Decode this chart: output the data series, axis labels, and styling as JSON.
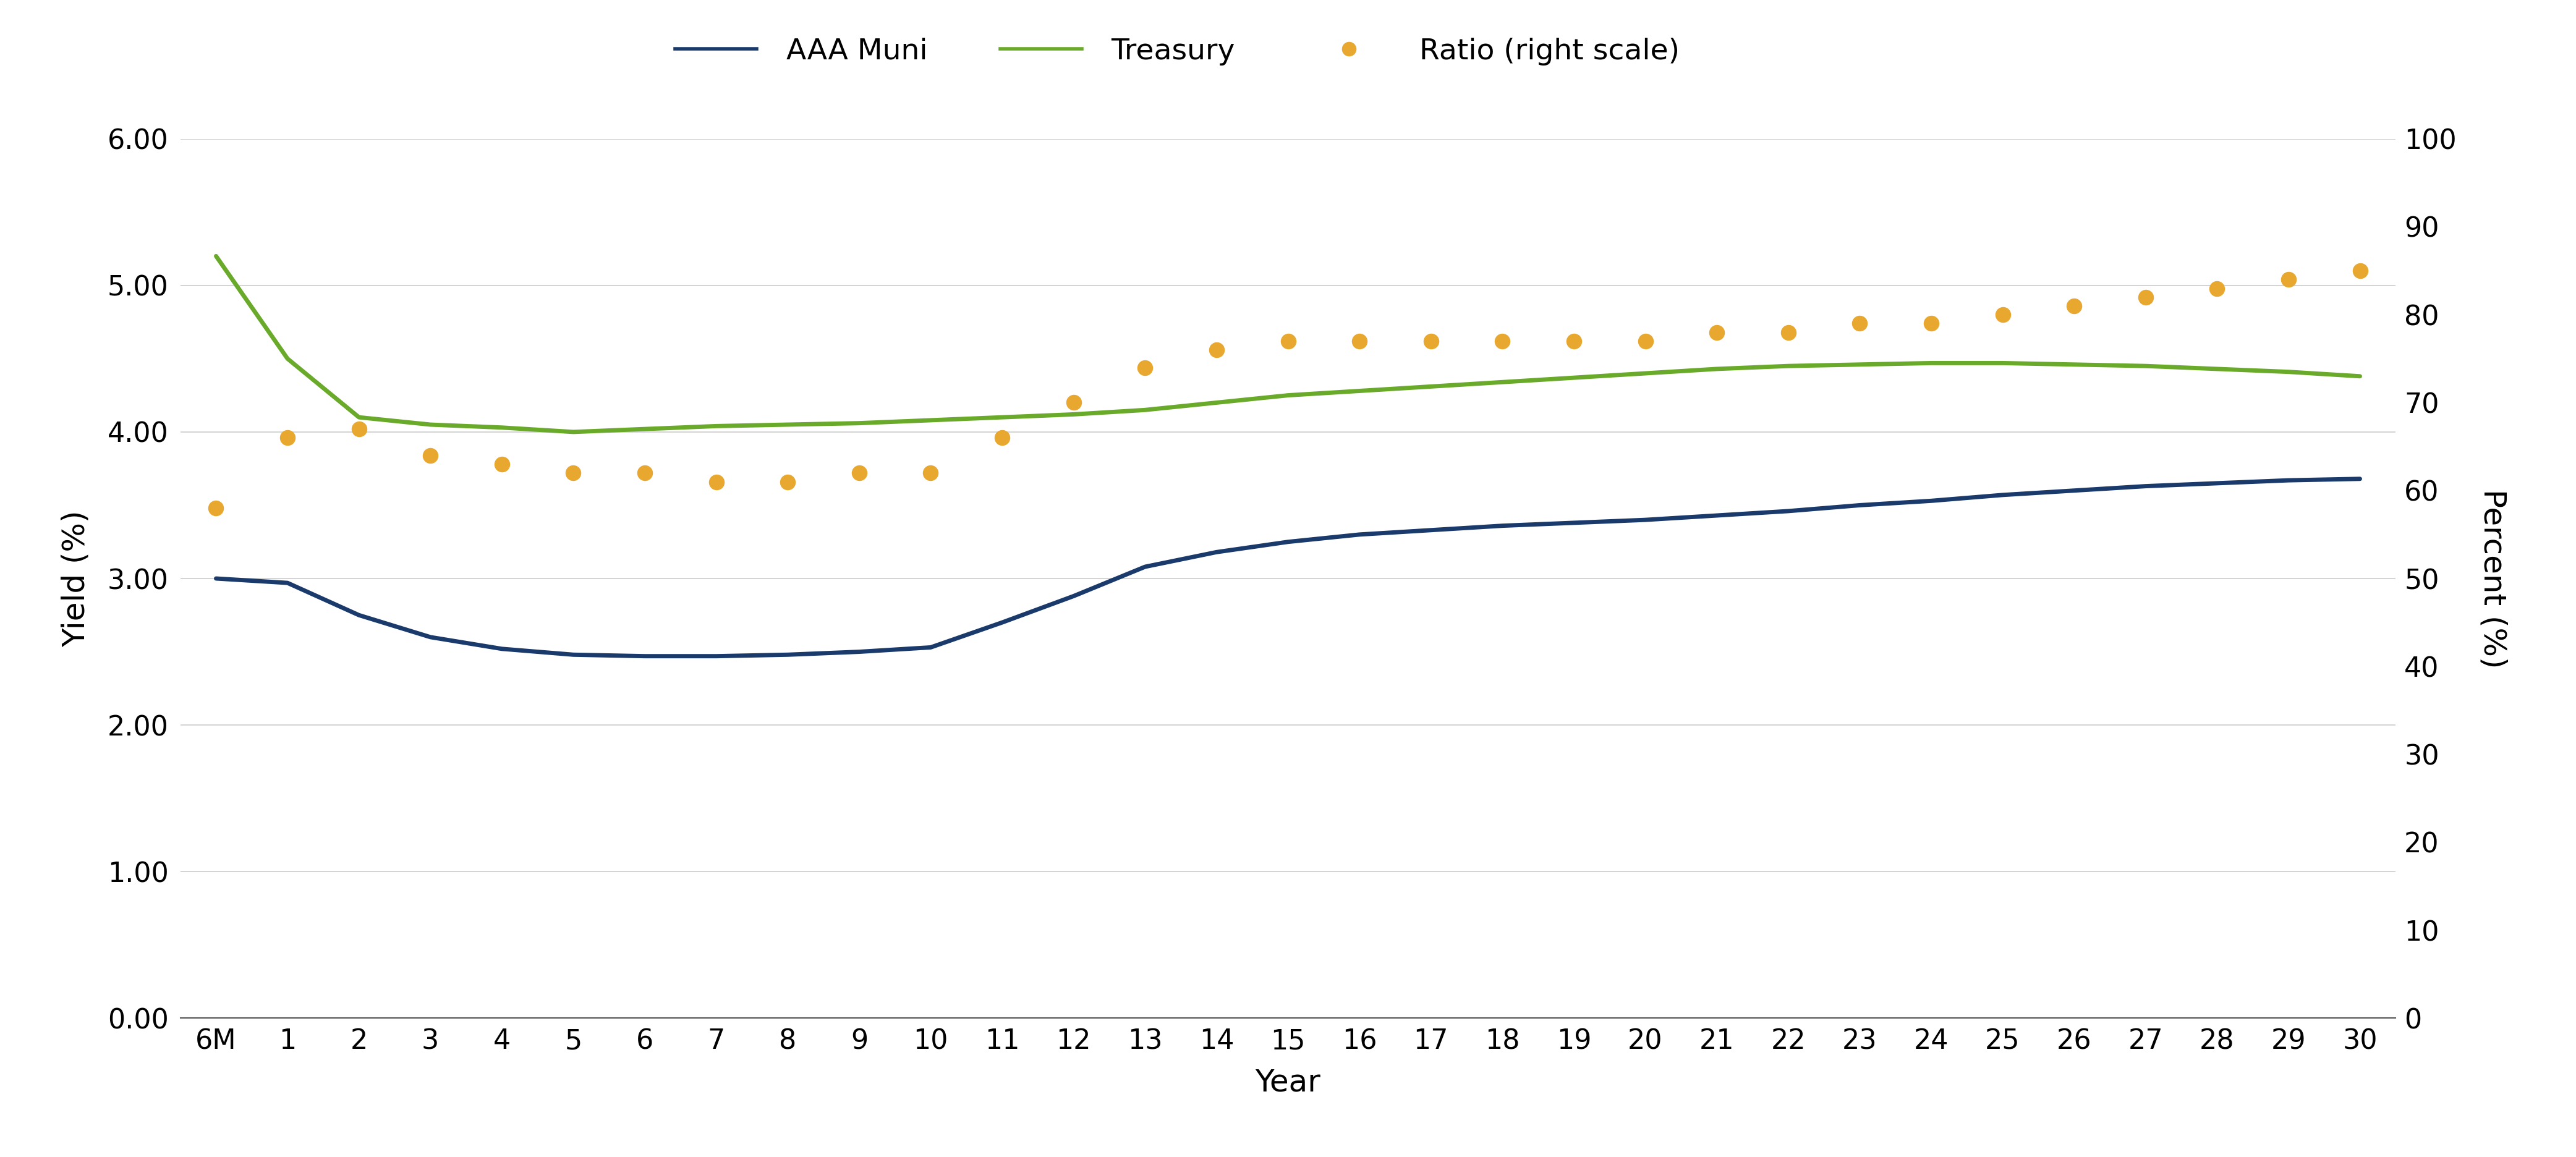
{
  "x_labels": [
    "6M",
    "1",
    "2",
    "3",
    "4",
    "5",
    "6",
    "7",
    "8",
    "9",
    "10",
    "11",
    "12",
    "13",
    "14",
    "15",
    "16",
    "17",
    "18",
    "19",
    "20",
    "21",
    "22",
    "23",
    "24",
    "25",
    "26",
    "27",
    "28",
    "29",
    "30"
  ],
  "x_values": [
    0,
    1,
    2,
    3,
    4,
    5,
    6,
    7,
    8,
    9,
    10,
    11,
    12,
    13,
    14,
    15,
    16,
    17,
    18,
    19,
    20,
    21,
    22,
    23,
    24,
    25,
    26,
    27,
    28,
    29,
    30
  ],
  "aaa_muni": [
    3.0,
    2.97,
    2.75,
    2.6,
    2.52,
    2.48,
    2.47,
    2.47,
    2.48,
    2.5,
    2.53,
    2.7,
    2.88,
    3.08,
    3.18,
    3.25,
    3.3,
    3.33,
    3.36,
    3.38,
    3.4,
    3.43,
    3.46,
    3.5,
    3.53,
    3.57,
    3.6,
    3.63,
    3.65,
    3.67,
    3.68
  ],
  "treasury": [
    5.2,
    4.5,
    4.1,
    4.05,
    4.03,
    4.0,
    4.02,
    4.04,
    4.05,
    4.06,
    4.08,
    4.1,
    4.12,
    4.15,
    4.2,
    4.25,
    4.28,
    4.31,
    4.34,
    4.37,
    4.4,
    4.43,
    4.45,
    4.46,
    4.47,
    4.47,
    4.46,
    4.45,
    4.43,
    4.41,
    4.38
  ],
  "ratio": [
    58,
    66,
    67,
    64,
    63,
    62,
    62,
    61,
    61,
    62,
    62,
    66,
    70,
    74,
    76,
    77,
    77,
    77,
    77,
    77,
    77,
    78,
    78,
    79,
    79,
    80,
    81,
    82,
    83,
    84,
    85
  ],
  "ylabel_left": "Yield (%)",
  "ylabel_right": "Percent (%)",
  "xlabel": "Year",
  "ylim_left": [
    0.0,
    6.0
  ],
  "ylim_right": [
    0,
    100
  ],
  "yticks_left": [
    0.0,
    1.0,
    2.0,
    3.0,
    4.0,
    5.0,
    6.0
  ],
  "yticks_right": [
    0,
    10,
    20,
    30,
    40,
    50,
    60,
    70,
    80,
    90,
    100
  ],
  "muni_color": "#1a3a6b",
  "treasury_color": "#6aaa2a",
  "ratio_color": "#e8a830",
  "background_color": "#ffffff",
  "grid_color": "#cccccc",
  "legend_entries": [
    "AAA Muni",
    "Treasury",
    "Ratio (right scale)"
  ],
  "line_width": 5.0,
  "dot_size": 300,
  "fig_width": 41.67,
  "fig_height": 18.72,
  "title_fontsize": 0,
  "axis_label_fontsize": 36,
  "tick_fontsize": 32,
  "legend_fontsize": 34
}
